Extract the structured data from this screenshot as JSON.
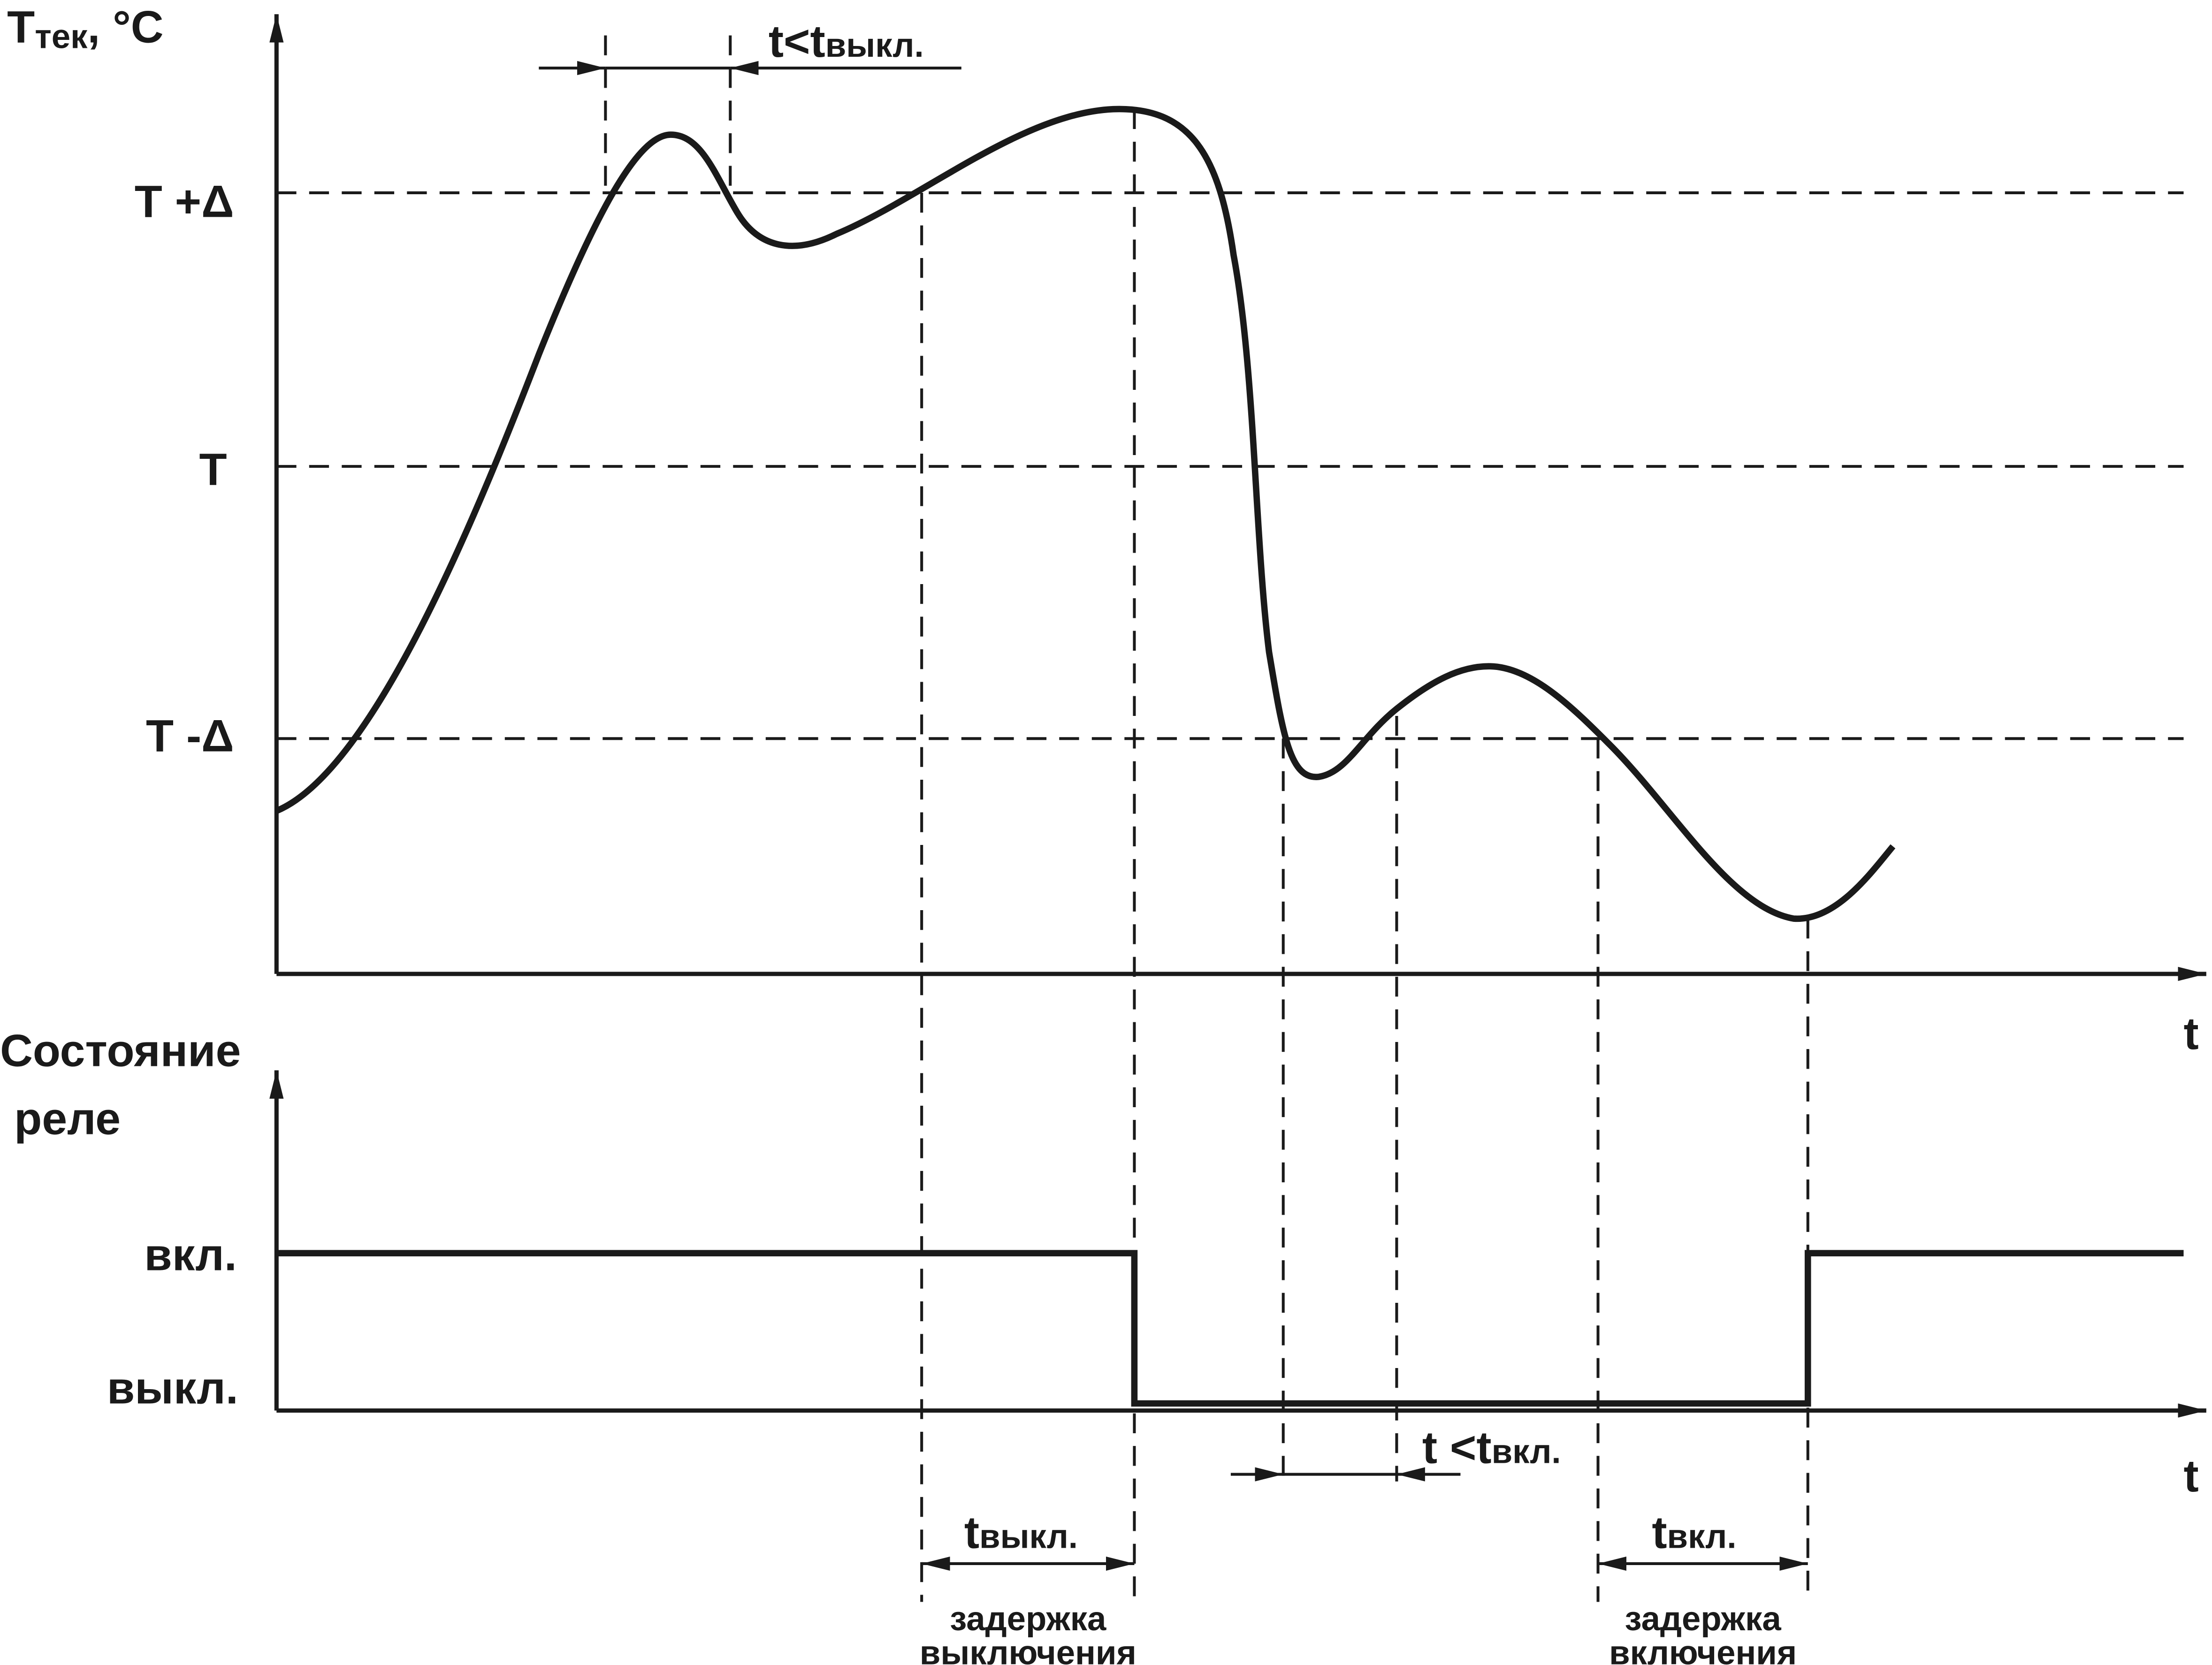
{
  "temperature_axis": {
    "symbol": "T",
    "subscript": "тек",
    "unit": ", °C",
    "time": "t"
  },
  "levels": {
    "upper": "T +Δ",
    "setpoint": "T",
    "lower": "T -Δ"
  },
  "relay_axis": {
    "title_line1": "Состояние",
    "title_line2": "реле",
    "on": "вкл.",
    "off": "выкл.",
    "time": "t"
  },
  "annotations": {
    "short_off": {
      "prefix": "t<t",
      "subscript": "выкл."
    },
    "short_on": {
      "prefix": "t <t",
      "subscript": "вкл."
    },
    "off_delay": {
      "symbol": "t",
      "subscript": "выкл.",
      "caption_line1": "задержка",
      "caption_line2": "выключения"
    },
    "on_delay": {
      "symbol": "t",
      "subscript": "вкл.",
      "caption_line1": "задержка",
      "caption_line2": "включения"
    }
  }
}
